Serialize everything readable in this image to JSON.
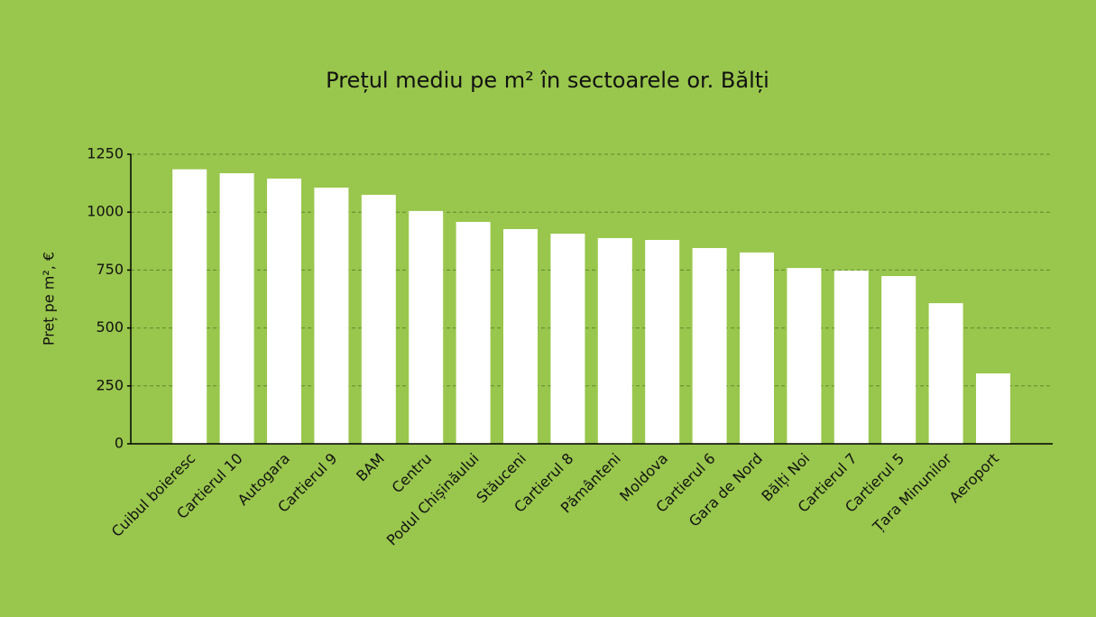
{
  "chart_data": {
    "type": "bar",
    "title": "Prețul mediu pe m² în sectoarele or. Bălți",
    "y_label": "Preț pe m², €",
    "categories": [
      "Cuibul boieresc",
      "Cartierul 10",
      "Autogara",
      "Cartierul 9",
      "BAM",
      "Centru",
      "Podul Chișinăului",
      "Stăuceni",
      "Cartierul 8",
      "Pământeni",
      "Moldova",
      "Cartierul 6",
      "Gara de Nord",
      "Bălți Noi",
      "Cartierul 7",
      "Cartierul 5",
      "Țara Minunilor",
      "Aeroport"
    ],
    "values": [
      1185,
      1168,
      1145,
      1106,
      1075,
      1005,
      958,
      927,
      907,
      888,
      880,
      845,
      826,
      759,
      748,
      724,
      607,
      304
    ],
    "color": "#ffffff",
    "ylim": [
      0,
      1250
    ],
    "yticks": [
      0,
      250,
      500,
      750,
      1000,
      1250
    ],
    "grid": true
  }
}
